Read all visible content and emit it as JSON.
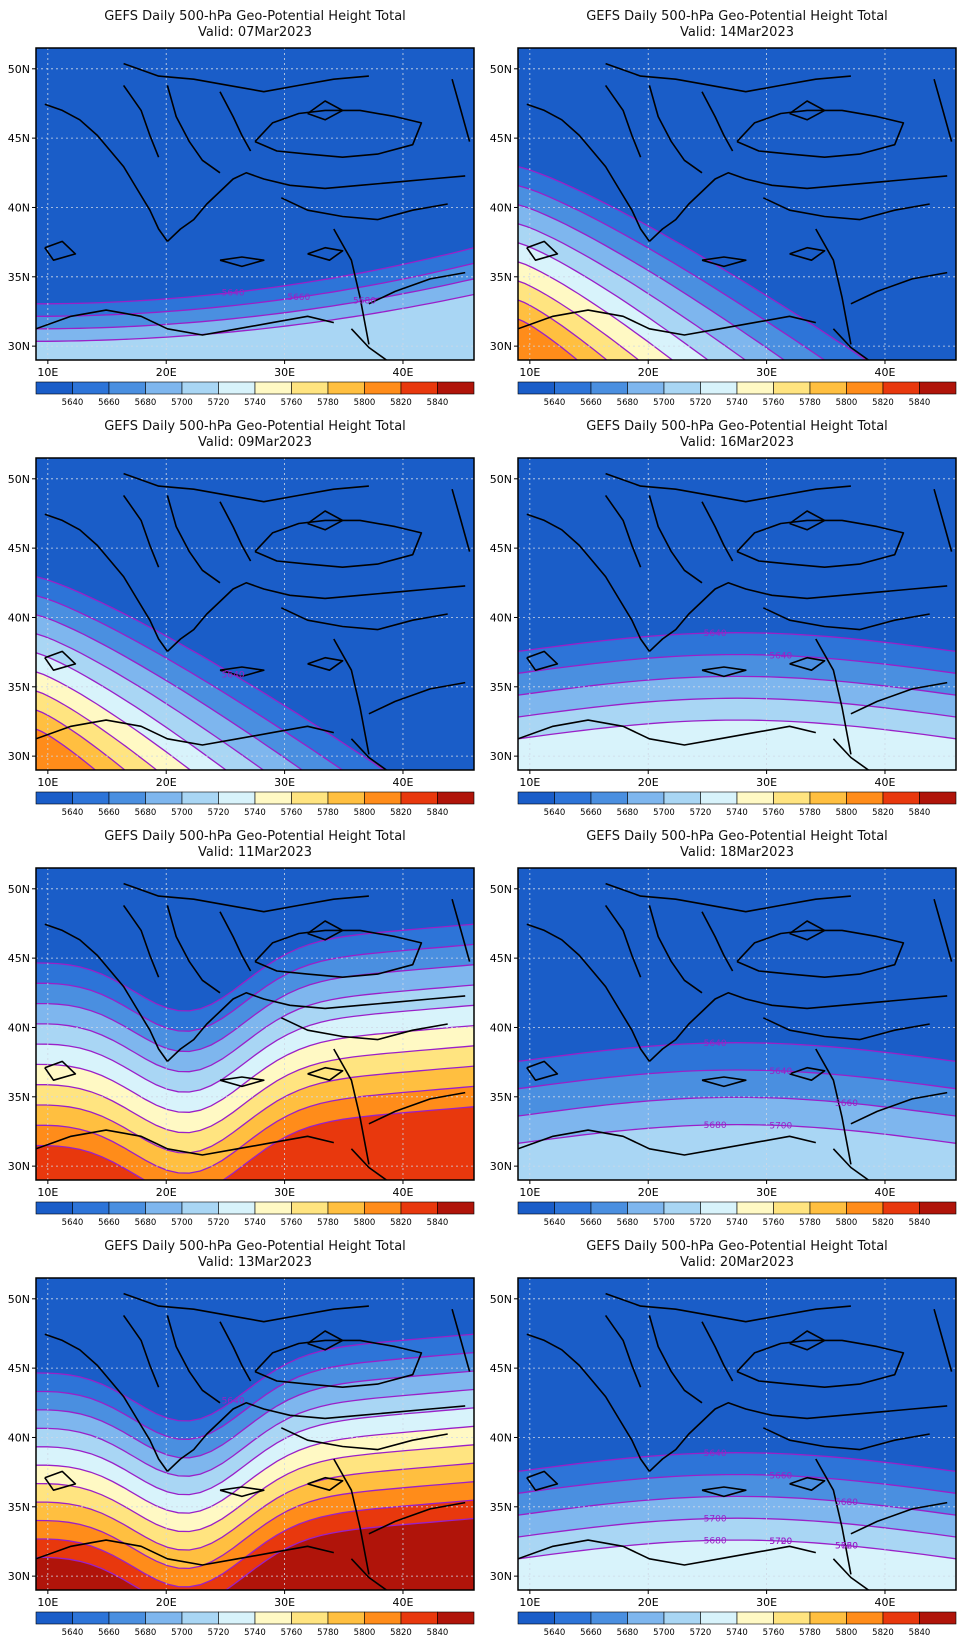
{
  "colors": {
    "scale": [
      "#1a5dc8",
      "#2d74d8",
      "#4a8fe0",
      "#7eb6ee",
      "#a9d6f4",
      "#d8f3fb",
      "#fff9c4",
      "#ffe480",
      "#ffbf40",
      "#ff8c1a",
      "#e8380d",
      "#b0140a"
    ],
    "contour": "#9a20c8",
    "land": "#000000",
    "grid": "#cfd8e6"
  },
  "legend": {
    "labels": [
      "5640",
      "5660",
      "5680",
      "5700",
      "5720",
      "5740",
      "5760",
      "5780",
      "5800",
      "5820",
      "5840"
    ]
  },
  "axes": {
    "lat_labels": [
      "50N",
      "45N",
      "40N",
      "35N",
      "30N"
    ],
    "lon_labels": [
      "10E",
      "20E",
      "30E",
      "40E"
    ]
  },
  "panels": [
    {
      "id": "p1",
      "title": "GEFS Daily 500-hPa Geo-Potential Height Total",
      "valid": "Valid: 07Mar2023",
      "field": {
        "type": "east",
        "bins": 4
      },
      "contour_labels": [
        "5640",
        "5660",
        "5680"
      ]
    },
    {
      "id": "p2",
      "title": "GEFS Daily 500-hPa Geo-Potential Height Total",
      "valid": "Valid: 14Mar2023",
      "field": {
        "type": "west",
        "bins": 9
      },
      "contour_labels": []
    },
    {
      "id": "p3",
      "title": "GEFS Daily 500-hPa Geo-Potential Height Total",
      "valid": "Valid: 09Mar2023",
      "field": {
        "type": "west",
        "bins": 9
      },
      "contour_labels": [
        "5640"
      ]
    },
    {
      "id": "p4",
      "title": "GEFS Daily 500-hPa Geo-Potential Height Total",
      "valid": "Valid: 16Mar2023",
      "field": {
        "type": "band",
        "bins": 5
      },
      "contour_labels": [
        "5640",
        "5640"
      ]
    },
    {
      "id": "p5",
      "title": "GEFS Daily 500-hPa Geo-Potential Height Total",
      "valid": "Valid: 11Mar2023",
      "field": {
        "type": "wave",
        "bins": 10
      },
      "contour_labels": []
    },
    {
      "id": "p6",
      "title": "GEFS Daily 500-hPa Geo-Potential Height Total",
      "valid": "Valid: 18Mar2023",
      "field": {
        "type": "band",
        "bins": 4
      },
      "contour_labels": [
        "5640",
        "5640",
        "5660",
        "5680",
        "5700"
      ]
    },
    {
      "id": "p7",
      "title": "GEFS Daily 500-hPa Geo-Potential Height Total",
      "valid": "Valid: 13Mar2023",
      "field": {
        "type": "wave",
        "bins": 11
      },
      "contour_labels": [
        "5640"
      ]
    },
    {
      "id": "p8",
      "title": "GEFS Daily 500-hPa Geo-Potential Height Total",
      "valid": "Valid: 20Mar2023",
      "field": {
        "type": "band",
        "bins": 5
      },
      "contour_labels": [
        "5640",
        "5660",
        "5680",
        "5700",
        "5720",
        "5660",
        "5680",
        "5700",
        "5720"
      ]
    }
  ]
}
